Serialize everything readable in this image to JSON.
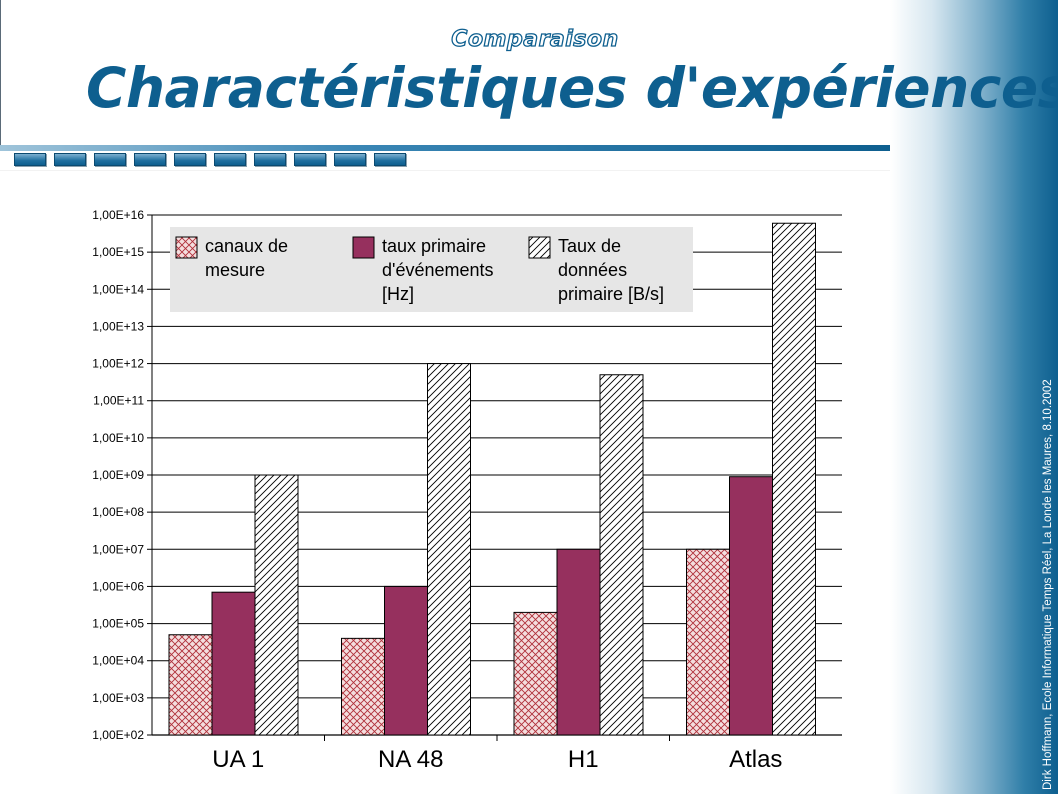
{
  "header": {
    "subtitle": "Comparaison",
    "title": "Charactéristiques d'expériences"
  },
  "footer": {
    "text": "Dirk Hoffmann, Ecole Informatique Temps Réel, La Londe les Maures, 8.10.2002"
  },
  "colors": {
    "brand": "#0e5f8f",
    "series_canaux": "#b0303a",
    "series_taux": "#96305e",
    "series_donnees": "#000000"
  },
  "chart_data": {
    "type": "bar",
    "scale": "log",
    "categories": [
      "UA 1",
      "NA 48",
      "H1",
      "Atlas"
    ],
    "series": [
      {
        "name": "canaux de mesure",
        "pattern": "crosshatch",
        "values": [
          50000,
          40000,
          200000,
          10000000
        ]
      },
      {
        "name": "taux primaire d'événements [Hz]",
        "pattern": "solid",
        "values": [
          700000,
          1000000,
          10000000,
          900000000
        ]
      },
      {
        "name": "Taux de données primaire [B/s]",
        "pattern": "diagonal",
        "values": [
          1000000000,
          1000000000000,
          500000000000,
          6000000000000000
        ]
      }
    ],
    "y_ticks": [
      "1,00E+02",
      "1,00E+03",
      "1,00E+04",
      "1,00E+05",
      "1,00E+06",
      "1,00E+07",
      "1,00E+08",
      "1,00E+09",
      "1,00E+10",
      "1,00E+11",
      "1,00E+12",
      "1,00E+13",
      "1,00E+14",
      "1,00E+15",
      "1,00E+16"
    ],
    "ylim": [
      100,
      10000000000000000
    ],
    "grid": true,
    "legend_position": "top-left",
    "legend_lines": [
      [
        "canaux de",
        "mesure"
      ],
      [
        "taux primaire",
        "d'événements",
        "[Hz]"
      ],
      [
        "Taux de",
        "données",
        "primaire [B/s]"
      ]
    ]
  }
}
